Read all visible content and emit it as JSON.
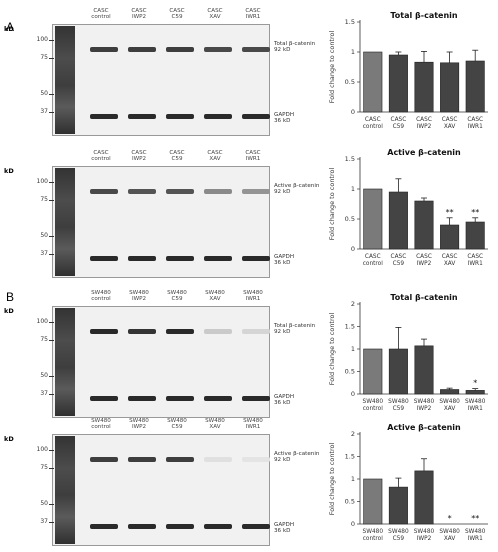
{
  "panels": {
    "A": "A",
    "B": "B"
  },
  "blots": [
    {
      "kd": "kD",
      "lanes": [
        "CASC\ncontrol",
        "CASC\nIWP2",
        "CASC\nC59",
        "CASC\nXAV",
        "CASC\nIWR1"
      ],
      "markers": [
        "100",
        "75",
        "50",
        "37"
      ],
      "target": "Total β-catenin\n92 kD",
      "loading": "GAPDH\n36 kD",
      "intensity": [
        0.85,
        0.85,
        0.85,
        0.8,
        0.8
      ]
    },
    {
      "kd": "kD",
      "lanes": [
        "CASC\ncontrol",
        "CASC\nIWP2",
        "CASC\nC59",
        "CASC\nXAV",
        "CASC\nIWR1"
      ],
      "markers": [
        "100",
        "75",
        "50",
        "37"
      ],
      "target": "Active β-catenin\n92 kD",
      "loading": "GAPDH\n36 kD",
      "intensity": [
        0.8,
        0.75,
        0.75,
        0.5,
        0.45
      ]
    },
    {
      "kd": "kD",
      "lanes": [
        "SW480\ncontrol",
        "SW480\nIWP2",
        "SW480\nC59",
        "SW480\nXAV",
        "SW480\nIWR1"
      ],
      "markers": [
        "100",
        "75",
        "50",
        "37"
      ],
      "target": "Total β-catenin\n92 kD",
      "loading": "GAPDH\n36 kD",
      "intensity": [
        0.95,
        0.9,
        0.95,
        0.2,
        0.15
      ]
    },
    {
      "kd": "kD",
      "lanes": [
        "SW480\ncontrol",
        "SW480\nIWP2",
        "SW480\nC59",
        "SW480\nXAV",
        "SW480\nIWR1"
      ],
      "markers": [
        "100",
        "75",
        "50",
        "37"
      ],
      "target": "Active β-catenin\n92 kD",
      "loading": "GAPDH\n36 kD",
      "intensity": [
        0.85,
        0.85,
        0.85,
        0.1,
        0.08
      ]
    }
  ],
  "chart_data": [
    {
      "type": "bar",
      "title": "Total β-catenin",
      "ylabel": "Fold change to control",
      "ylim": [
        0,
        1.5
      ],
      "yticks": [
        "0",
        "0.5",
        "1",
        "1.5"
      ],
      "categories": [
        "CASC\ncontrol",
        "CASC\nC59",
        "CASC\nIWP2",
        "CASC\nXAV",
        "CASC\nIWR1"
      ],
      "values": [
        1.0,
        0.95,
        0.83,
        0.82,
        0.85
      ],
      "errors": [
        0.0,
        0.05,
        0.18,
        0.18,
        0.18
      ],
      "significance": [
        "",
        "",
        "",
        "",
        ""
      ],
      "colors": [
        "#7a7a7a",
        "#444444",
        "#444444",
        "#444444",
        "#444444"
      ]
    },
    {
      "type": "bar",
      "title": "Active β-catenin",
      "ylabel": "Fold change to control",
      "ylim": [
        0,
        1.5
      ],
      "yticks": [
        "0",
        "0.5",
        "1",
        "1.5"
      ],
      "categories": [
        "CASC\ncontrol",
        "CASC\nC59",
        "CASC\nIWP2",
        "CASC\nXAV",
        "CASC\nIWR1"
      ],
      "values": [
        1.0,
        0.95,
        0.8,
        0.4,
        0.45
      ],
      "errors": [
        0.0,
        0.22,
        0.05,
        0.12,
        0.07
      ],
      "significance": [
        "",
        "",
        "",
        "**",
        "**"
      ],
      "colors": [
        "#7a7a7a",
        "#444444",
        "#444444",
        "#444444",
        "#444444"
      ]
    },
    {
      "type": "bar",
      "title": "Total β-catenin",
      "ylabel": "Fold change to control",
      "ylim": [
        0,
        2
      ],
      "yticks": [
        "0",
        "0.5",
        "1",
        "1.5",
        "2"
      ],
      "categories": [
        "SW480\ncontrol",
        "SW480\nC59",
        "SW480\nIWP2",
        "SW480\nXAV",
        "SW480\nIWR1"
      ],
      "values": [
        1.0,
        1.0,
        1.07,
        0.1,
        0.08
      ],
      "errors": [
        0.0,
        0.48,
        0.15,
        0.03,
        0.04
      ],
      "significance": [
        "",
        "",
        "",
        "",
        "*"
      ],
      "colors": [
        "#7a7a7a",
        "#444444",
        "#444444",
        "#444444",
        "#444444"
      ]
    },
    {
      "type": "bar",
      "title": "Active β-catenin",
      "ylabel": "Fold change to control",
      "ylim": [
        0,
        2
      ],
      "yticks": [
        "0",
        "0.5",
        "1",
        "1.5",
        "2"
      ],
      "categories": [
        "SW480\ncontrol",
        "SW480\nC59",
        "SW480\nIWP2",
        "SW480\nXAV",
        "SW480\nIWR1"
      ],
      "values": [
        1.0,
        0.82,
        1.18,
        0.0,
        0.0
      ],
      "errors": [
        0.0,
        0.2,
        0.27,
        0.0,
        0.0
      ],
      "significance": [
        "",
        "",
        "",
        "*",
        "**"
      ],
      "colors": [
        "#7a7a7a",
        "#444444",
        "#444444",
        "#444444",
        "#444444"
      ]
    }
  ]
}
